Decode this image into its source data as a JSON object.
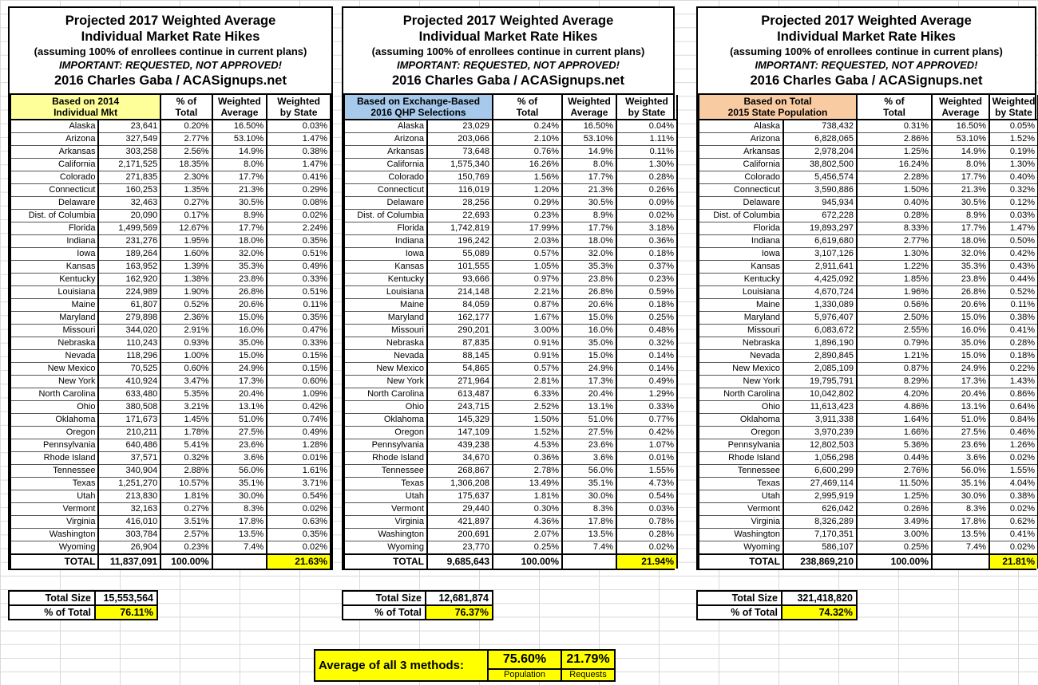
{
  "colors": {
    "highlight_yellow": "#FFFF00",
    "basis_yellow": "#FFFF99",
    "basis_blue": "#A6C9EC",
    "basis_orange": "#F9CBA2"
  },
  "tables": [
    {
      "title": {
        "l1": "Projected 2017 Weighted Average",
        "l2": "Individual Market Rate Hikes",
        "sub": "(assuming 100% of enrollees continue in current plans)",
        "warn": "IMPORTANT: REQUESTED, NOT APPROVED!",
        "credit": "2016 Charles Gaba / ACASignups.net"
      },
      "basis": {
        "l1": "Based on 2014",
        "l2": "Individual Mkt",
        "color": "#FFFF99"
      },
      "cols": {
        "pct_l1": "% of",
        "pct_l2": "Total",
        "wavg_l1": "Weighted",
        "wavg_l2": "Average",
        "wstate_l1": "Weighted",
        "wstate_l2": "by State"
      },
      "rows": [
        [
          "Alaska",
          "23,641",
          "0.20%",
          "16.50%",
          "0.03%"
        ],
        [
          "Arizona",
          "327,549",
          "2.77%",
          "53.10%",
          "1.47%"
        ],
        [
          "Arkansas",
          "303,258",
          "2.56%",
          "14.9%",
          "0.38%"
        ],
        [
          "California",
          "2,171,525",
          "18.35%",
          "8.0%",
          "1.47%"
        ],
        [
          "Colorado",
          "271,835",
          "2.30%",
          "17.7%",
          "0.41%"
        ],
        [
          "Connecticut",
          "160,253",
          "1.35%",
          "21.3%",
          "0.29%"
        ],
        [
          "Delaware",
          "32,463",
          "0.27%",
          "30.5%",
          "0.08%"
        ],
        [
          "Dist. of Columbia",
          "20,090",
          "0.17%",
          "8.9%",
          "0.02%"
        ],
        [
          "Florida",
          "1,499,569",
          "12.67%",
          "17.7%",
          "2.24%"
        ],
        [
          "Indiana",
          "231,276",
          "1.95%",
          "18.0%",
          "0.35%"
        ],
        [
          "Iowa",
          "189,264",
          "1.60%",
          "32.0%",
          "0.51%"
        ],
        [
          "Kansas",
          "163,952",
          "1.39%",
          "35.3%",
          "0.49%"
        ],
        [
          "Kentucky",
          "162,920",
          "1.38%",
          "23.8%",
          "0.33%"
        ],
        [
          "Louisiana",
          "224,989",
          "1.90%",
          "26.8%",
          "0.51%"
        ],
        [
          "Maine",
          "61,807",
          "0.52%",
          "20.6%",
          "0.11%"
        ],
        [
          "Maryland",
          "279,898",
          "2.36%",
          "15.0%",
          "0.35%"
        ],
        [
          "Missouri",
          "344,020",
          "2.91%",
          "16.0%",
          "0.47%"
        ],
        [
          "Nebraska",
          "110,243",
          "0.93%",
          "35.0%",
          "0.33%"
        ],
        [
          "Nevada",
          "118,296",
          "1.00%",
          "15.0%",
          "0.15%"
        ],
        [
          "New Mexico",
          "70,525",
          "0.60%",
          "24.9%",
          "0.15%"
        ],
        [
          "New York",
          "410,924",
          "3.47%",
          "17.3%",
          "0.60%"
        ],
        [
          "North Carolina",
          "633,480",
          "5.35%",
          "20.4%",
          "1.09%"
        ],
        [
          "Ohio",
          "380,508",
          "3.21%",
          "13.1%",
          "0.42%"
        ],
        [
          "Oklahoma",
          "171,673",
          "1.45%",
          "51.0%",
          "0.74%"
        ],
        [
          "Oregon",
          "210,211",
          "1.78%",
          "27.5%",
          "0.49%"
        ],
        [
          "Pennsylvania",
          "640,486",
          "5.41%",
          "23.6%",
          "1.28%"
        ],
        [
          "Rhode Island",
          "37,571",
          "0.32%",
          "3.6%",
          "0.01%"
        ],
        [
          "Tennessee",
          "340,904",
          "2.88%",
          "56.0%",
          "1.61%"
        ],
        [
          "Texas",
          "1,251,270",
          "10.57%",
          "35.1%",
          "3.71%"
        ],
        [
          "Utah",
          "213,830",
          "1.81%",
          "30.0%",
          "0.54%"
        ],
        [
          "Vermont",
          "32,163",
          "0.27%",
          "8.3%",
          "0.02%"
        ],
        [
          "Virginia",
          "416,010",
          "3.51%",
          "17.8%",
          "0.63%"
        ],
        [
          "Washington",
          "303,784",
          "2.57%",
          "13.5%",
          "0.35%"
        ],
        [
          "Wyoming",
          "26,904",
          "0.23%",
          "7.4%",
          "0.02%"
        ]
      ],
      "total": [
        "TOTAL",
        "11,837,091",
        "100.00%",
        "",
        "21.63%"
      ],
      "total_size_label": "Total Size",
      "total_size_value": "15,553,564",
      "pct_of_total_label": "% of Total",
      "pct_of_total_value": "76.11%"
    },
    {
      "title": {
        "l1": "Projected 2017 Weighted Average",
        "l2": "Individual Market Rate Hikes",
        "sub": "(assuming 100% of enrollees continue in current plans)",
        "warn": "IMPORTANT: REQUESTED, NOT APPROVED!",
        "credit": "2016 Charles Gaba / ACASignups.net"
      },
      "basis": {
        "l1": "Based on Exchange-Based",
        "l2": "2016 QHP Selections",
        "color": "#A6C9EC"
      },
      "cols": {
        "pct_l1": "% of",
        "pct_l2": "Total",
        "wavg_l1": "Weighted",
        "wavg_l2": "Average",
        "wstate_l1": "Weighted",
        "wstate_l2": "by State"
      },
      "rows": [
        [
          "Alaska",
          "23,029",
          "0.24%",
          "16.50%",
          "0.04%"
        ],
        [
          "Arizona",
          "203,066",
          "2.10%",
          "53.10%",
          "1.11%"
        ],
        [
          "Arkansas",
          "73,648",
          "0.76%",
          "14.9%",
          "0.11%"
        ],
        [
          "California",
          "1,575,340",
          "16.26%",
          "8.0%",
          "1.30%"
        ],
        [
          "Colorado",
          "150,769",
          "1.56%",
          "17.7%",
          "0.28%"
        ],
        [
          "Connecticut",
          "116,019",
          "1.20%",
          "21.3%",
          "0.26%"
        ],
        [
          "Delaware",
          "28,256",
          "0.29%",
          "30.5%",
          "0.09%"
        ],
        [
          "Dist. of Columbia",
          "22,693",
          "0.23%",
          "8.9%",
          "0.02%"
        ],
        [
          "Florida",
          "1,742,819",
          "17.99%",
          "17.7%",
          "3.18%"
        ],
        [
          "Indiana",
          "196,242",
          "2.03%",
          "18.0%",
          "0.36%"
        ],
        [
          "Iowa",
          "55,089",
          "0.57%",
          "32.0%",
          "0.18%"
        ],
        [
          "Kansas",
          "101,555",
          "1.05%",
          "35.3%",
          "0.37%"
        ],
        [
          "Kentucky",
          "93,666",
          "0.97%",
          "23.8%",
          "0.23%"
        ],
        [
          "Louisiana",
          "214,148",
          "2.21%",
          "26.8%",
          "0.59%"
        ],
        [
          "Maine",
          "84,059",
          "0.87%",
          "20.6%",
          "0.18%"
        ],
        [
          "Maryland",
          "162,177",
          "1.67%",
          "15.0%",
          "0.25%"
        ],
        [
          "Missouri",
          "290,201",
          "3.00%",
          "16.0%",
          "0.48%"
        ],
        [
          "Nebraska",
          "87,835",
          "0.91%",
          "35.0%",
          "0.32%"
        ],
        [
          "Nevada",
          "88,145",
          "0.91%",
          "15.0%",
          "0.14%"
        ],
        [
          "New Mexico",
          "54,865",
          "0.57%",
          "24.9%",
          "0.14%"
        ],
        [
          "New York",
          "271,964",
          "2.81%",
          "17.3%",
          "0.49%"
        ],
        [
          "North Carolina",
          "613,487",
          "6.33%",
          "20.4%",
          "1.29%"
        ],
        [
          "Ohio",
          "243,715",
          "2.52%",
          "13.1%",
          "0.33%"
        ],
        [
          "Oklahoma",
          "145,329",
          "1.50%",
          "51.0%",
          "0.77%"
        ],
        [
          "Oregon",
          "147,109",
          "1.52%",
          "27.5%",
          "0.42%"
        ],
        [
          "Pennsylvania",
          "439,238",
          "4.53%",
          "23.6%",
          "1.07%"
        ],
        [
          "Rhode Island",
          "34,670",
          "0.36%",
          "3.6%",
          "0.01%"
        ],
        [
          "Tennessee",
          "268,867",
          "2.78%",
          "56.0%",
          "1.55%"
        ],
        [
          "Texas",
          "1,306,208",
          "13.49%",
          "35.1%",
          "4.73%"
        ],
        [
          "Utah",
          "175,637",
          "1.81%",
          "30.0%",
          "0.54%"
        ],
        [
          "Vermont",
          "29,440",
          "0.30%",
          "8.3%",
          "0.03%"
        ],
        [
          "Virginia",
          "421,897",
          "4.36%",
          "17.8%",
          "0.78%"
        ],
        [
          "Washington",
          "200,691",
          "2.07%",
          "13.5%",
          "0.28%"
        ],
        [
          "Wyoming",
          "23,770",
          "0.25%",
          "7.4%",
          "0.02%"
        ]
      ],
      "total": [
        "TOTAL",
        "9,685,643",
        "100.00%",
        "",
        "21.94%"
      ],
      "total_size_label": "Total Size",
      "total_size_value": "12,681,874",
      "pct_of_total_label": "% of Total",
      "pct_of_total_value": "76.37%"
    },
    {
      "title": {
        "l1": "Projected 2017 Weighted Average",
        "l2": "Individual Market Rate Hikes",
        "sub": "(assuming 100% of enrollees continue in current plans)",
        "warn": "IMPORTANT: REQUESTED, NOT APPROVED!",
        "credit": "2016 Charles Gaba / ACASignups.net"
      },
      "basis": {
        "l1": "Based on Total",
        "l2": "2015 State Population",
        "color": "#F9CBA2"
      },
      "cols": {
        "pct_l1": "% of",
        "pct_l2": "Total",
        "wavg_l1": "Weighted",
        "wavg_l2": "Average",
        "wstate_l1": "Weighted",
        "wstate_l2": "by State"
      },
      "rows": [
        [
          "Alaska",
          "738,432",
          "0.31%",
          "16.50%",
          "0.05%"
        ],
        [
          "Arizona",
          "6,828,065",
          "2.86%",
          "53.10%",
          "1.52%"
        ],
        [
          "Arkansas",
          "2,978,204",
          "1.25%",
          "14.9%",
          "0.19%"
        ],
        [
          "California",
          "38,802,500",
          "16.24%",
          "8.0%",
          "1.30%"
        ],
        [
          "Colorado",
          "5,456,574",
          "2.28%",
          "17.7%",
          "0.40%"
        ],
        [
          "Connecticut",
          "3,590,886",
          "1.50%",
          "21.3%",
          "0.32%"
        ],
        [
          "Delaware",
          "945,934",
          "0.40%",
          "30.5%",
          "0.12%"
        ],
        [
          "Dist. of Columbia",
          "672,228",
          "0.28%",
          "8.9%",
          "0.03%"
        ],
        [
          "Florida",
          "19,893,297",
          "8.33%",
          "17.7%",
          "1.47%"
        ],
        [
          "Indiana",
          "6,619,680",
          "2.77%",
          "18.0%",
          "0.50%"
        ],
        [
          "Iowa",
          "3,107,126",
          "1.30%",
          "32.0%",
          "0.42%"
        ],
        [
          "Kansas",
          "2,911,641",
          "1.22%",
          "35.3%",
          "0.43%"
        ],
        [
          "Kentucky",
          "4,425,092",
          "1.85%",
          "23.8%",
          "0.44%"
        ],
        [
          "Louisiana",
          "4,670,724",
          "1.96%",
          "26.8%",
          "0.52%"
        ],
        [
          "Maine",
          "1,330,089",
          "0.56%",
          "20.6%",
          "0.11%"
        ],
        [
          "Maryland",
          "5,976,407",
          "2.50%",
          "15.0%",
          "0.38%"
        ],
        [
          "Missouri",
          "6,083,672",
          "2.55%",
          "16.0%",
          "0.41%"
        ],
        [
          "Nebraska",
          "1,896,190",
          "0.79%",
          "35.0%",
          "0.28%"
        ],
        [
          "Nevada",
          "2,890,845",
          "1.21%",
          "15.0%",
          "0.18%"
        ],
        [
          "New Mexico",
          "2,085,109",
          "0.87%",
          "24.9%",
          "0.22%"
        ],
        [
          "New York",
          "19,795,791",
          "8.29%",
          "17.3%",
          "1.43%"
        ],
        [
          "North Carolina",
          "10,042,802",
          "4.20%",
          "20.4%",
          "0.86%"
        ],
        [
          "Ohio",
          "11,613,423",
          "4.86%",
          "13.1%",
          "0.64%"
        ],
        [
          "Oklahoma",
          "3,911,338",
          "1.64%",
          "51.0%",
          "0.84%"
        ],
        [
          "Oregon",
          "3,970,239",
          "1.66%",
          "27.5%",
          "0.46%"
        ],
        [
          "Pennsylvania",
          "12,802,503",
          "5.36%",
          "23.6%",
          "1.26%"
        ],
        [
          "Rhode Island",
          "1,056,298",
          "0.44%",
          "3.6%",
          "0.02%"
        ],
        [
          "Tennessee",
          "6,600,299",
          "2.76%",
          "56.0%",
          "1.55%"
        ],
        [
          "Texas",
          "27,469,114",
          "11.50%",
          "35.1%",
          "4.04%"
        ],
        [
          "Utah",
          "2,995,919",
          "1.25%",
          "30.0%",
          "0.38%"
        ],
        [
          "Vermont",
          "626,042",
          "0.26%",
          "8.3%",
          "0.02%"
        ],
        [
          "Virginia",
          "8,326,289",
          "3.49%",
          "17.8%",
          "0.62%"
        ],
        [
          "Washington",
          "7,170,351",
          "3.00%",
          "13.5%",
          "0.41%"
        ],
        [
          "Wyoming",
          "586,107",
          "0.25%",
          "7.4%",
          "0.02%"
        ]
      ],
      "total": [
        "TOTAL",
        "238,869,210",
        "100.00%",
        "",
        "21.81%"
      ],
      "total_size_label": "Total Size",
      "total_size_value": "321,418,820",
      "pct_of_total_label": "% of Total",
      "pct_of_total_value": "74.32%"
    }
  ],
  "footer": {
    "label": "Average of all 3 methods:",
    "population_value": "75.60%",
    "population_label": "Population",
    "requests_value": "21.79%",
    "requests_label": "Requests"
  }
}
